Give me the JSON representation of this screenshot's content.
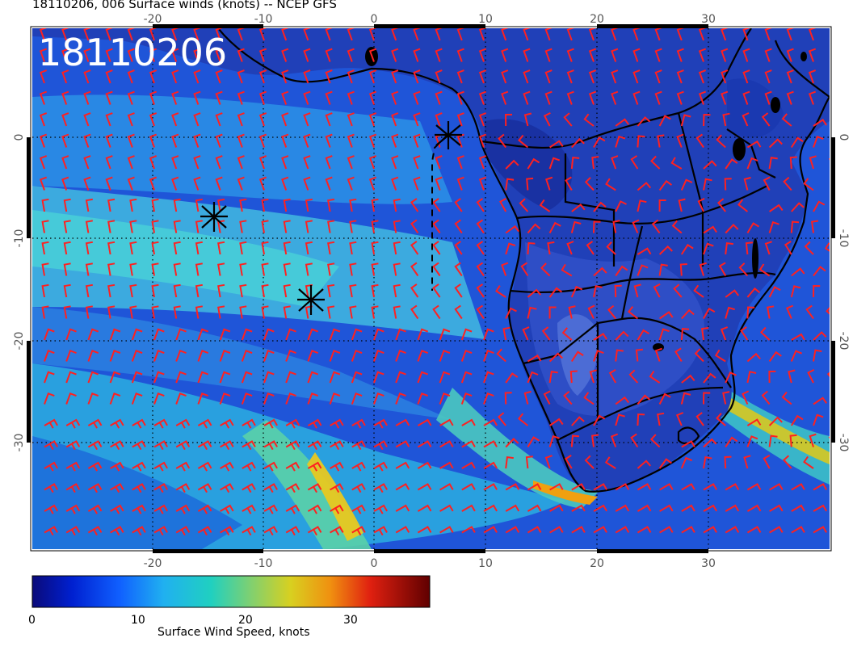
{
  "title": "18110206, 006 Surface winds (knots) -- NCEP GFS",
  "stamp": "18110206",
  "map": {
    "lon_ticks": [
      "-20",
      "-10",
      "0",
      "10",
      "20",
      "30"
    ],
    "lat_ticks": [
      "0",
      "-10",
      "-20",
      "-30"
    ],
    "storm_markers": [
      "storm-marker-1",
      "storm-marker-2",
      "storm-marker-3"
    ]
  },
  "colorbar": {
    "title": "Surface Wind Speed, knots",
    "ticks": [
      "0",
      "10",
      "20",
      "30"
    ]
  },
  "colors": {
    "ocean_low": "#1f4fd8",
    "ocean_mid": "#2ab5d8",
    "ocean_high": "#e0c020",
    "barb": "#ff2020",
    "coast": "#000000"
  }
}
